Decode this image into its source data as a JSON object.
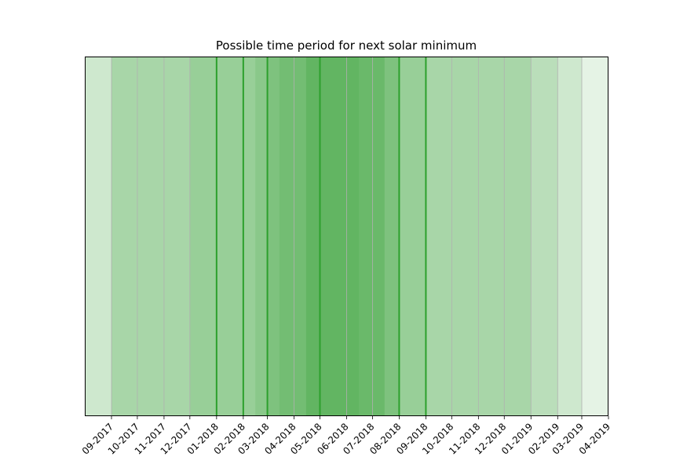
{
  "chart_data": {
    "type": "bar",
    "title": "Possible time period for next solar minimum",
    "xlabel": "",
    "ylabel": "",
    "x_tick_labels": [
      "09-2017",
      "10-2017",
      "11-2017",
      "12-2017",
      "01-2018",
      "02-2018",
      "03-2018",
      "04-2018",
      "05-2018",
      "06-2018",
      "07-2018",
      "08-2018",
      "09-2018",
      "10-2018",
      "11-2018",
      "12-2018",
      "01-2019",
      "02-2019",
      "03-2019",
      "04-2019"
    ],
    "xlim": [
      "2017-08-01",
      "2019-04-01"
    ],
    "grid": true,
    "shade_color": "#2ca02c",
    "spans": [
      {
        "start": "2017-08-01",
        "end": "2019-04-01"
      },
      {
        "start": "2017-08-01",
        "end": "2019-03-01"
      },
      {
        "start": "2017-09-01",
        "end": "2019-02-01"
      },
      {
        "start": "2017-09-01",
        "end": "2019-01-01"
      },
      {
        "start": "2017-12-01",
        "end": "2018-09-01"
      },
      {
        "start": "2018-02-15",
        "end": "2018-08-01"
      },
      {
        "start": "2018-03-01",
        "end": "2018-08-01"
      },
      {
        "start": "2018-03-15",
        "end": "2018-07-15"
      },
      {
        "start": "2018-04-15",
        "end": "2018-06-15"
      },
      {
        "start": "2018-04-15",
        "end": "2018-07-15"
      }
    ],
    "vlines": [
      "2018-01-01",
      "2018-02-01",
      "2018-03-01",
      "2018-05-01",
      "2018-08-01",
      "2018-09-01"
    ]
  }
}
